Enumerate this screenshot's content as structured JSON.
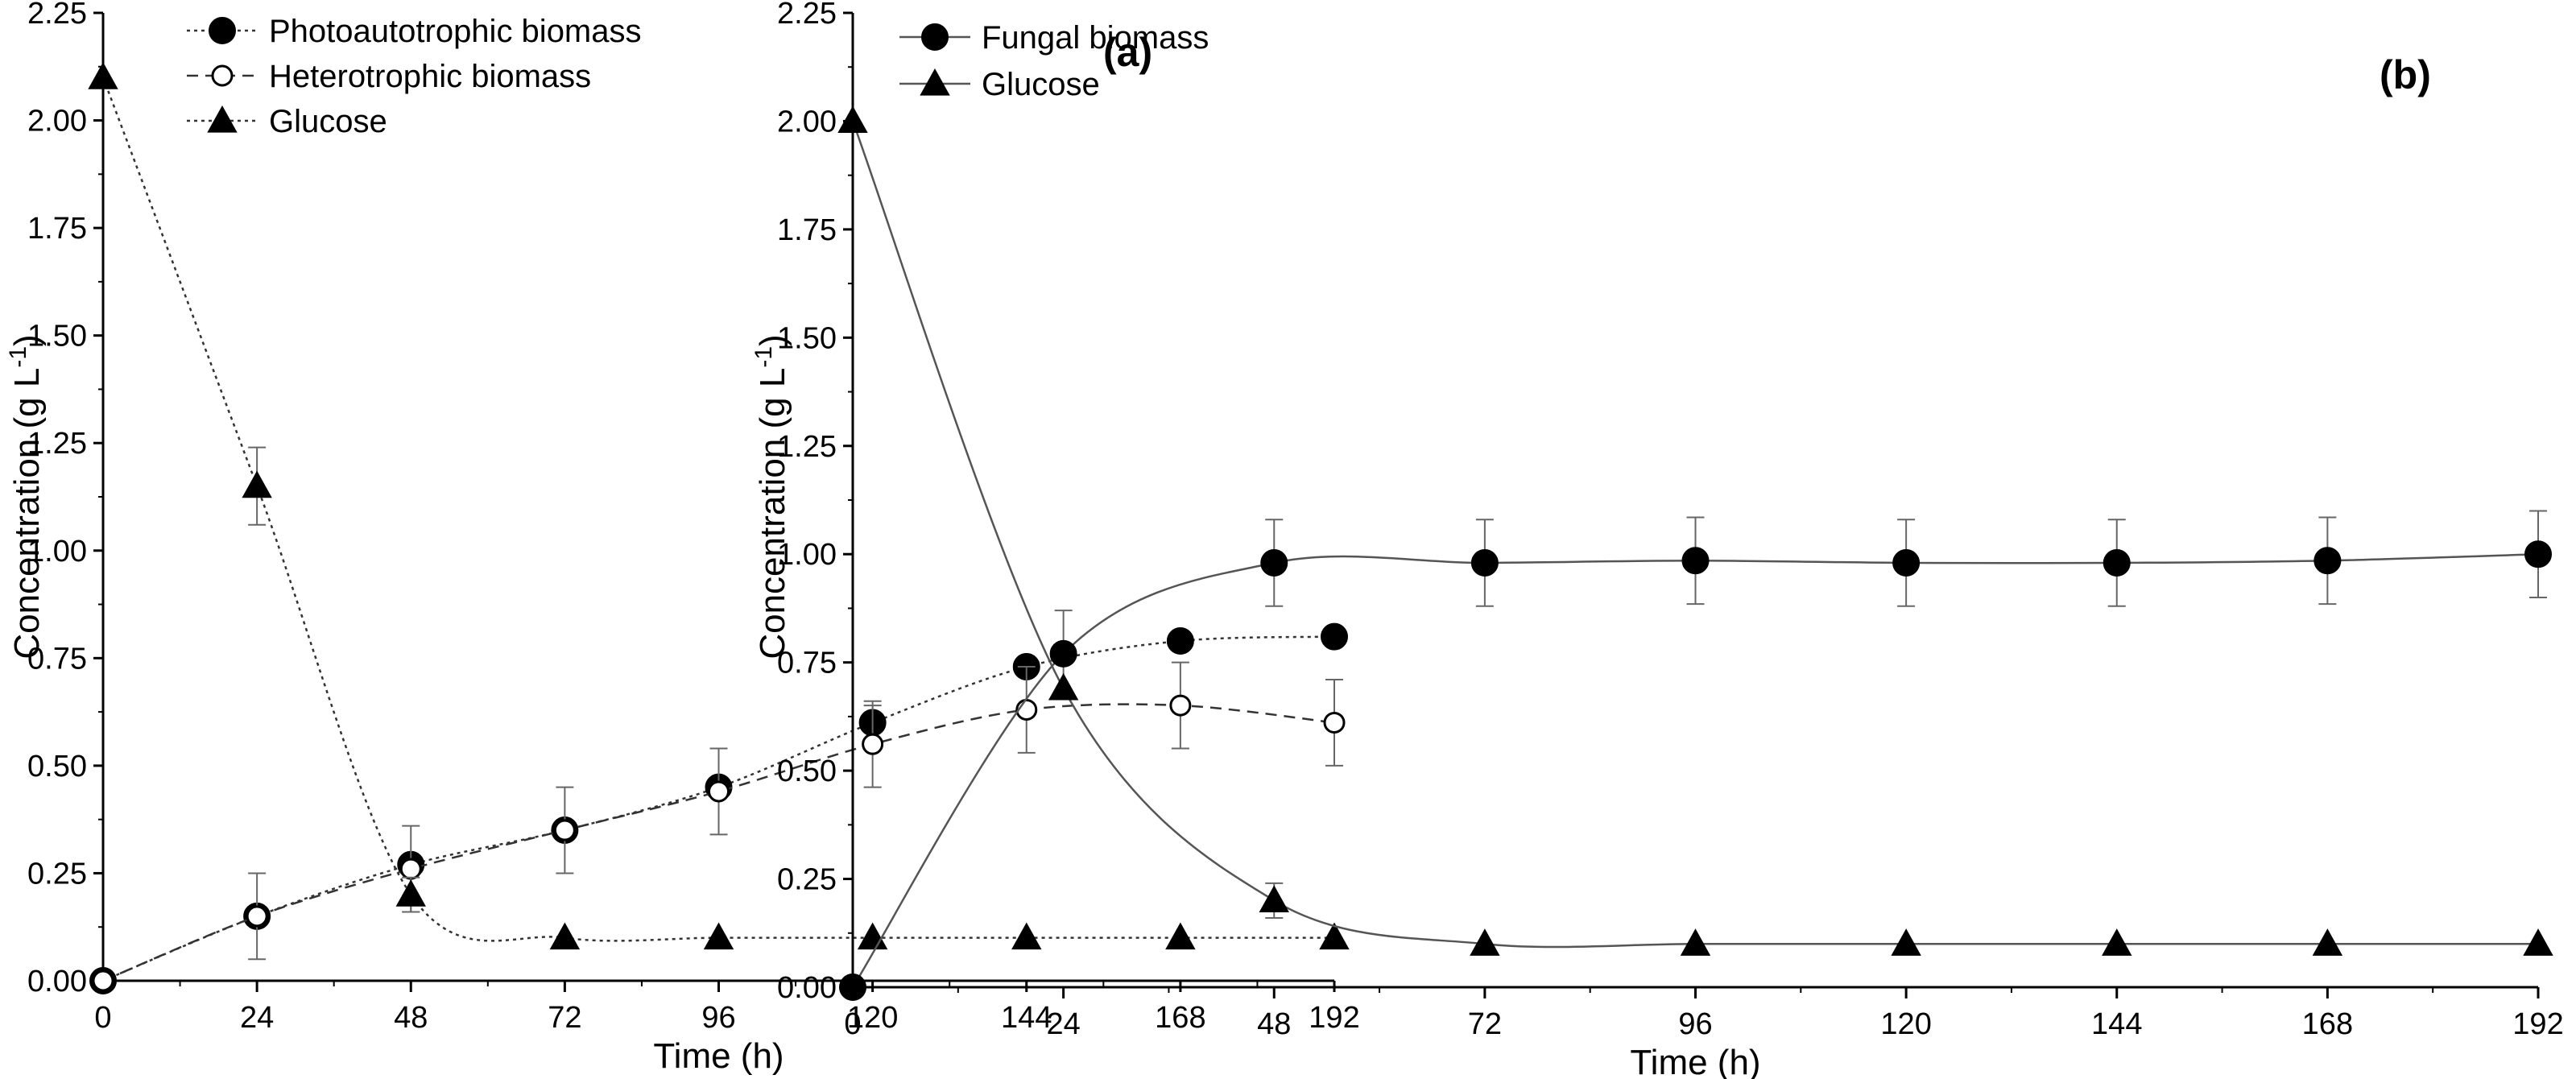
{
  "chart_data": [
    {
      "type": "line",
      "panel_label": "(a)",
      "xlabel": "Time (h)",
      "ylabel": "Concentration (g L",
      "ylabel_superscript": "-1",
      "ylabel_close": ")",
      "xlim": [
        0,
        192
      ],
      "ylim": [
        0,
        2.25
      ],
      "xticks": [
        "0",
        "24",
        "48",
        "72",
        "96",
        "120",
        "144",
        "168",
        "192"
      ],
      "yticks": [
        "0.00",
        "0.25",
        "0.50",
        "0.75",
        "1.00",
        "1.25",
        "1.50",
        "1.75",
        "2.00",
        "2.25"
      ],
      "legend_position": "top-left",
      "series": [
        {
          "name": "Photoautotrophic biomass",
          "marker": "filled-circle",
          "line": "dotted",
          "x": [
            0,
            24,
            48,
            72,
            96,
            120,
            144,
            168,
            192
          ],
          "y": [
            0.0,
            0.15,
            0.27,
            0.35,
            0.45,
            0.6,
            0.73,
            0.79,
            0.8
          ],
          "err": [
            0,
            0,
            0,
            0,
            0,
            0.04,
            0,
            0,
            0
          ]
        },
        {
          "name": "Heterotrophic biomass",
          "marker": "open-circle",
          "line": "dashed",
          "x": [
            0,
            24,
            48,
            72,
            96,
            120,
            144,
            168,
            192
          ],
          "y": [
            0.0,
            0.15,
            0.26,
            0.35,
            0.44,
            0.55,
            0.63,
            0.64,
            0.6
          ],
          "err": [
            0,
            0.1,
            0.1,
            0.1,
            0.1,
            0.1,
            0.1,
            0.1,
            0.1
          ]
        },
        {
          "name": "Glucose",
          "marker": "filled-triangle",
          "line": "dotted",
          "x": [
            0,
            24,
            48,
            72,
            96,
            120,
            144,
            168,
            192
          ],
          "y": [
            2.1,
            1.15,
            0.2,
            0.1,
            0.1,
            0.1,
            0.1,
            0.1,
            0.1
          ],
          "err": [
            0,
            0.09,
            0.04,
            0,
            0,
            0,
            0,
            0,
            0
          ]
        }
      ]
    },
    {
      "type": "line",
      "panel_label": "(b)",
      "xlabel": "Time (h)",
      "ylabel": "Concentration (g L",
      "ylabel_superscript": "-1",
      "ylabel_close": ")",
      "xlim": [
        0,
        192
      ],
      "ylim": [
        0,
        2.25
      ],
      "xticks": [
        "0",
        "24",
        "48",
        "72",
        "96",
        "120",
        "144",
        "168",
        "192"
      ],
      "yticks": [
        "0.00",
        "0.25",
        "0.50",
        "0.75",
        "1.00",
        "1.25",
        "1.50",
        "1.75",
        "2.00",
        "2.25"
      ],
      "legend_position": "top-left",
      "series": [
        {
          "name": "Fungal biomass",
          "marker": "filled-circle",
          "line": "solid",
          "x": [
            0,
            24,
            48,
            72,
            96,
            120,
            144,
            168,
            192
          ],
          "y": [
            0.0,
            0.77,
            0.98,
            0.98,
            0.985,
            0.98,
            0.98,
            0.985,
            1.0
          ],
          "err": [
            0,
            0.1,
            0.1,
            0.1,
            0.1,
            0.1,
            0.1,
            0.1,
            0.1
          ]
        },
        {
          "name": "Glucose",
          "marker": "filled-triangle",
          "line": "solid",
          "x": [
            0,
            24,
            48,
            72,
            96,
            120,
            144,
            168,
            192
          ],
          "y": [
            2.0,
            0.69,
            0.2,
            0.1,
            0.1,
            0.1,
            0.1,
            0.1,
            0.1
          ],
          "err": [
            0,
            0,
            0.04,
            0,
            0,
            0,
            0,
            0,
            0
          ]
        }
      ]
    }
  ]
}
